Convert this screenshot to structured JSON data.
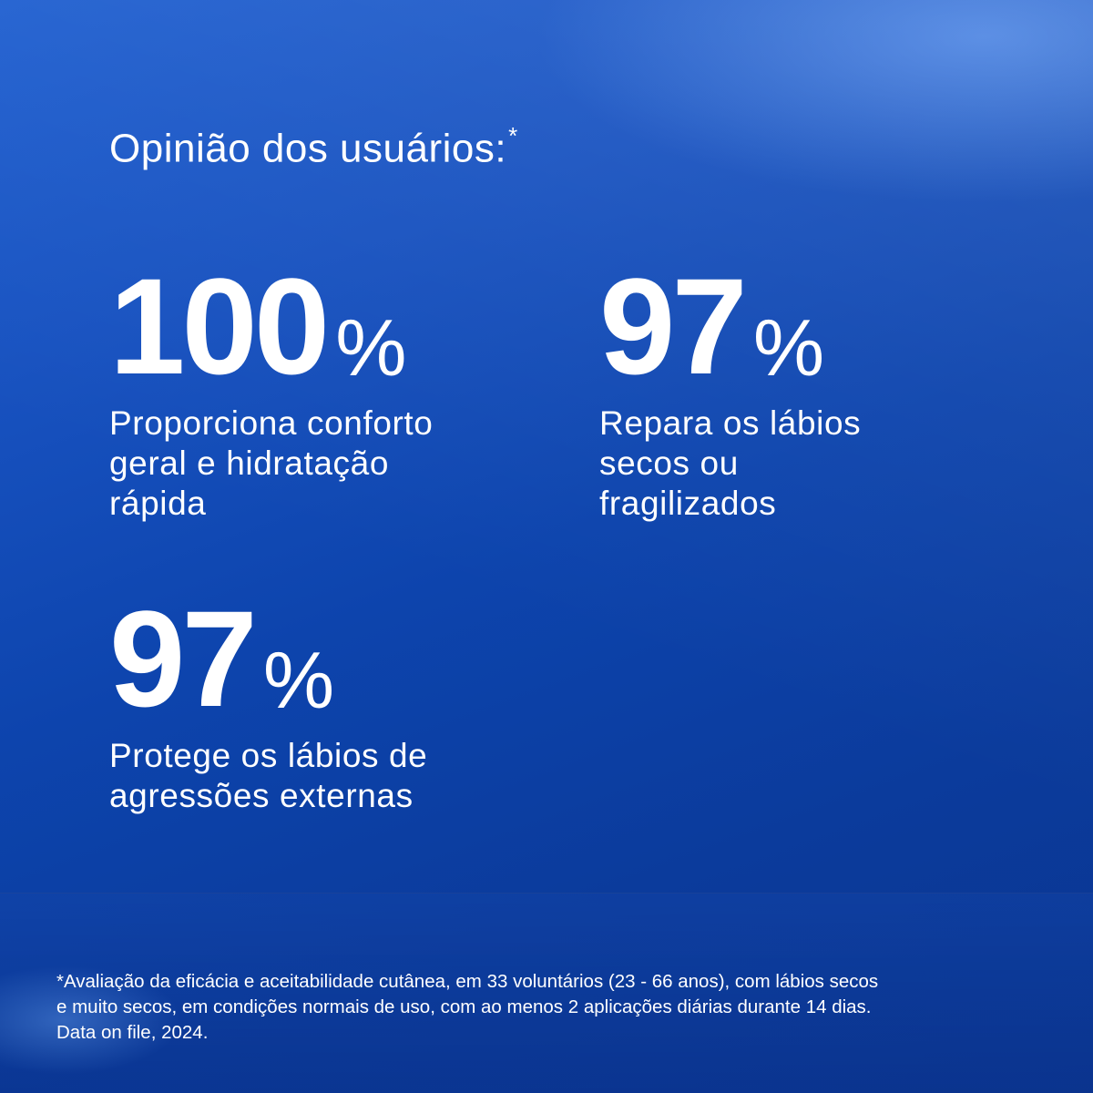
{
  "heading": {
    "text": "Opinião dos usuários:",
    "marker": "*"
  },
  "stats": [
    {
      "value": "100",
      "unit": "%",
      "lines": [
        "Proporciona conforto",
        "geral e hidratação",
        "rápida"
      ]
    },
    {
      "value": "97",
      "unit": "%",
      "lines": [
        "Repara os lábios",
        "secos ou",
        "fragilizados"
      ]
    },
    {
      "value": "97",
      "unit": "%",
      "lines": [
        "Protege os lábios de",
        "agressões externas"
      ]
    }
  ],
  "footnote": {
    "lines": [
      "*Avaliação da eficácia e aceitabilidade cutânea, em 33 voluntários (23 - 66 anos), com lábios secos",
      "e muito secos, em condições normais de uso, com ao menos 2 aplicações diárias durante 14 dias.",
      "Data on file, 2024."
    ]
  },
  "colors": {
    "background_top": "#1f5fd0",
    "background_bottom": "#0a3590",
    "text": "#ffffff"
  }
}
